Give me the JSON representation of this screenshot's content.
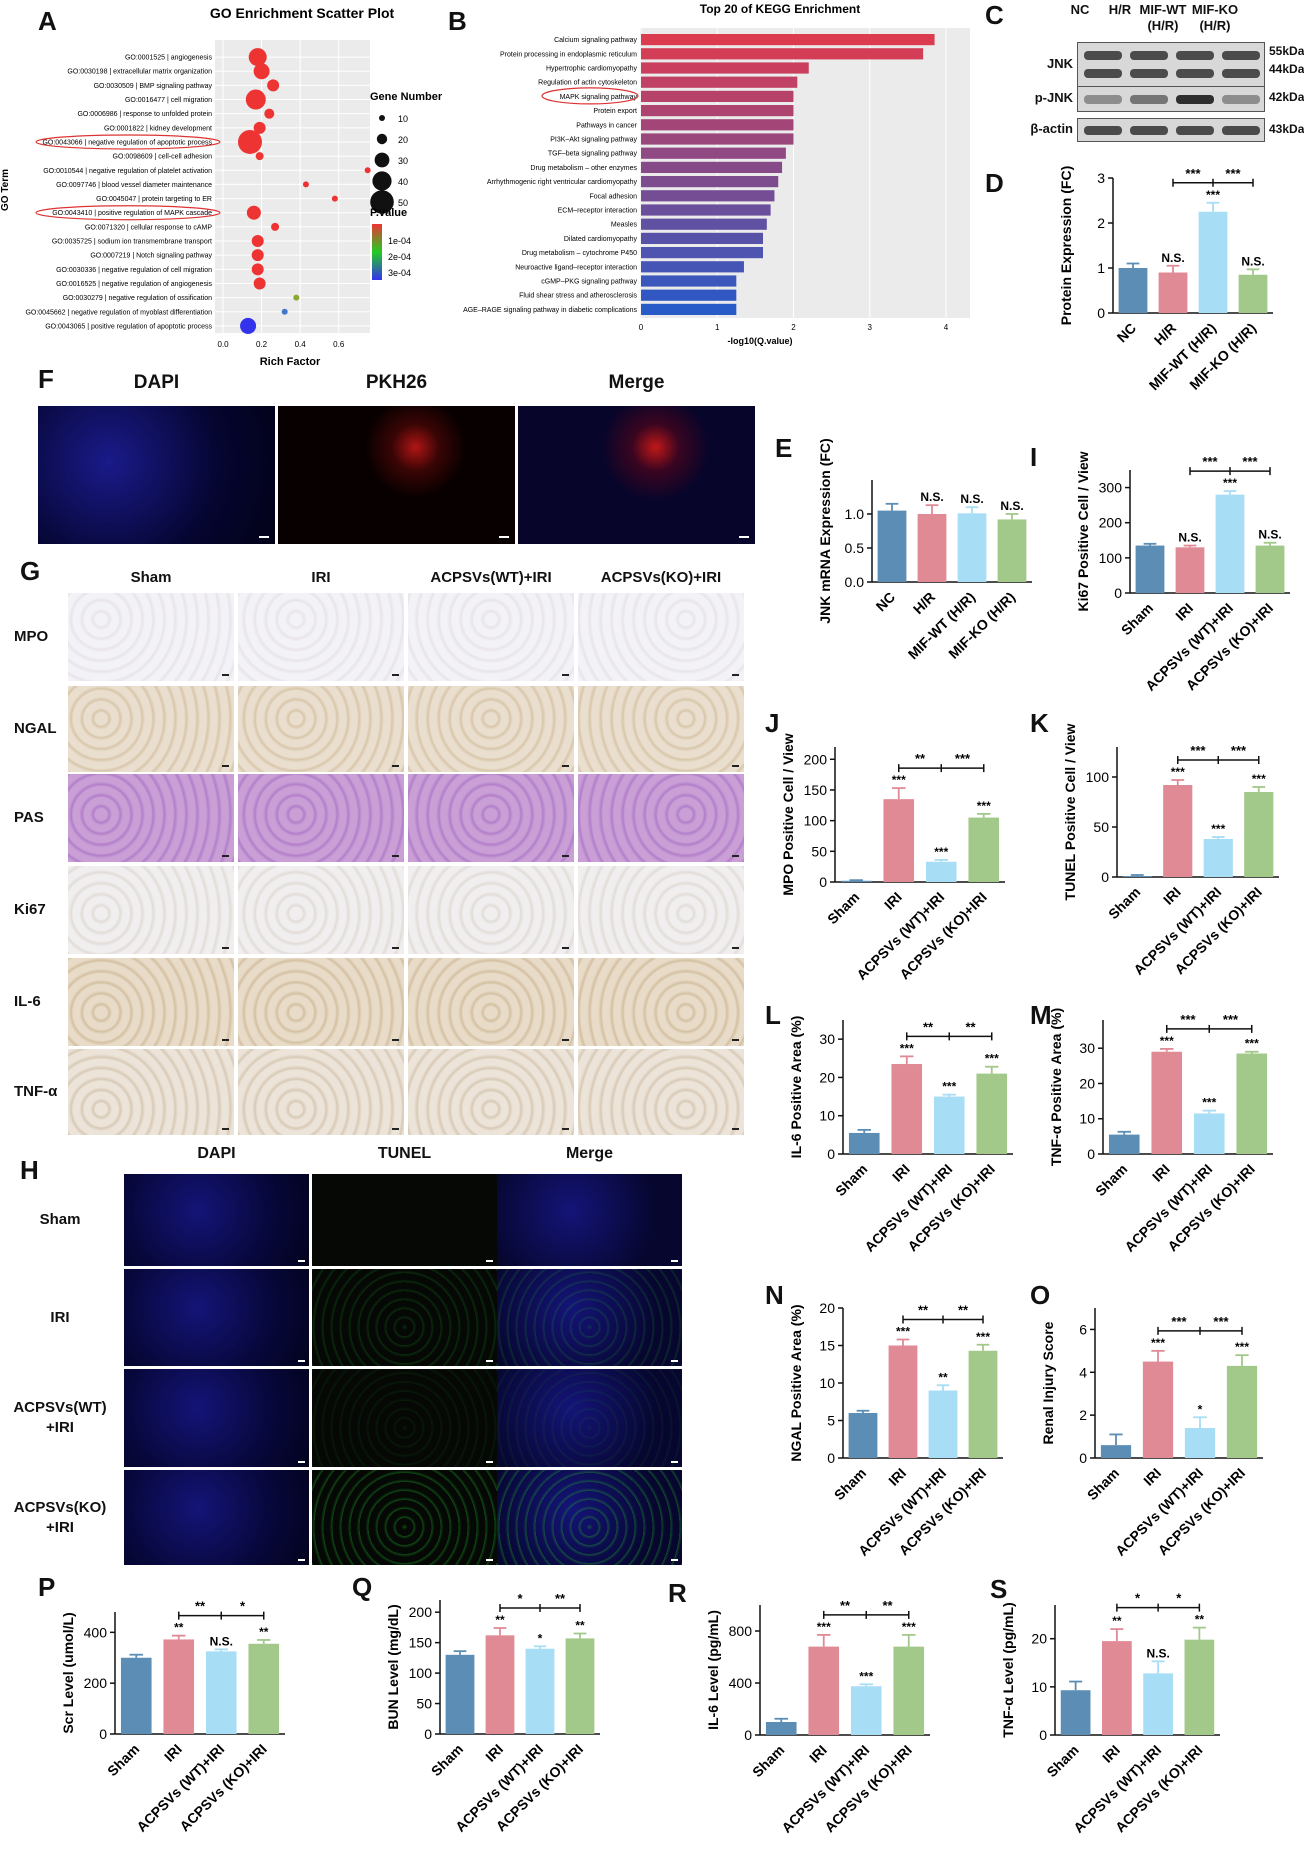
{
  "panels": {
    "A": {
      "letter": "A",
      "title": "GO Enrichment Scatter Plot",
      "ylabel": "GO Term",
      "xlabel": "Rich Factor",
      "xticks": [
        "0.0",
        "0.2",
        "0.4",
        "0.6"
      ],
      "terms": [
        "GO:0001525 | angiogenesis",
        "GO:0030198 | extracellular matrix organization",
        "GO:0030509 | BMP signaling pathway",
        "GO:0016477 | cell migration",
        "GO:0006986 | response to unfolded protein",
        "GO:0001822 | kidney development",
        "GO:0043066 | negative regulation of apoptotic process",
        "GO:0098609 | cell-cell adhesion",
        "GO:0010544 | negative regulation of platelet activation",
        "GO:0097746 | blood vessel diameter maintenance",
        "GO:0045047 | protein targeting to ER",
        "GO:0043410 | positive regulation of MAPK cascade",
        "GO:0071320 | cellular response to cAMP",
        "GO:0035725 | sodium ion transmembrane transport",
        "GO:0007219 | Notch signaling pathway",
        "GO:0030336 | negative regulation of cell migration",
        "GO:0016525 | negative regulation of angiogenesis",
        "GO:0030279 | negative regulation of ossification",
        "GO:0045662 | negative regulation of myoblast differentiation",
        "GO:0043065 | positive regulation of apoptotic process"
      ],
      "legend_size_title": "Gene Number",
      "legend_sizes": [
        "10",
        "20",
        "30",
        "40",
        "50"
      ],
      "legend_color_title": "P.value",
      "legend_colors": [
        "1e-04",
        "2e-04",
        "3e-04"
      ]
    },
    "B": {
      "letter": "B",
      "title": "Top 20 of KEGG Enrichment",
      "xlabel": "-log10(Q.value)",
      "xticks": [
        "0",
        "1",
        "2",
        "3",
        "4"
      ],
      "terms": [
        "Calcium signaling pathway",
        "Protein processing in endoplasmic reticulum",
        "Hypertrophic cardiomyopathy",
        "Regulation of actin cytoskeleton",
        "MAPK signaling pathway",
        "Protein export",
        "Pathways in cancer",
        "PI3K–Akt signaling pathway",
        "TGF–beta signaling pathway",
        "Drug metabolism – other enzymes",
        "Arrhythmogenic right ventricular cardiomyopathy",
        "Focal adhesion",
        "ECM–receptor interaction",
        "Measles",
        "Dilated cardiomyopathy",
        "Drug metabolism – cytochrome P450",
        "Neuroactive ligand–receptor interaction",
        "cGMP–PKG signaling pathway",
        "Fluid shear stress and atherosclerosis",
        "AGE–RAGE signaling pathway in diabetic complications"
      ]
    },
    "C": {
      "letter": "C",
      "headers": [
        "NC",
        "H/R",
        "MIF-WT (H/R)",
        "MIF-KO (H/R)"
      ],
      "rows": [
        "JNK",
        "p-JNK",
        "β-actin"
      ],
      "kda": [
        "55kDa",
        "44kDa",
        "42kDa",
        "43kDa"
      ]
    },
    "F": {
      "letter": "F",
      "headers": [
        "DAPI",
        "PKH26",
        "Merge"
      ]
    },
    "G": {
      "letter": "G",
      "headers": [
        "Sham",
        "IRI",
        "ACPSVs(WT)+IRI",
        "ACPSVs(KO)+IRI"
      ],
      "rows": [
        "MPO",
        "NGAL",
        "PAS",
        "Ki67",
        "IL-6",
        "TNF-α"
      ]
    },
    "H": {
      "letter": "H",
      "headers": [
        "DAPI",
        "TUNEL",
        "Merge"
      ],
      "rows": [
        "Sham",
        "IRI",
        "ACPSVs(WT)",
        "+IRI",
        "ACPSVs(KO)",
        "+IRI"
      ]
    }
  },
  "colors": {
    "blue": "#5b8db5",
    "pink": "#e08a96",
    "light": "#a7ddf5",
    "green": "#a3c98a"
  },
  "chart_data": [
    {
      "id": "D",
      "letter": "D",
      "type": "bar",
      "ylabel": "Protein Expression (FC)",
      "categories": [
        "NC",
        "H/R",
        "MIF-WT (H/R)",
        "MIF-KO (H/R)"
      ],
      "values": [
        1.0,
        0.9,
        2.25,
        0.85
      ],
      "errors": [
        0.1,
        0.15,
        0.2,
        0.12
      ],
      "ylim": [
        0,
        3
      ],
      "yticks": [
        "0",
        "1",
        "2",
        "3"
      ],
      "sig": [
        "",
        "N.S.",
        "***",
        "N.S."
      ],
      "brackets": [
        "***",
        "***"
      ]
    },
    {
      "id": "E",
      "letter": "E",
      "type": "bar",
      "ylabel": "JNK mRNA Expression (FC)",
      "categories": [
        "NC",
        "H/R",
        "MIF-WT (H/R)",
        "MIF-KO (H/R)"
      ],
      "values": [
        1.05,
        1.0,
        1.01,
        0.92
      ],
      "errors": [
        0.1,
        0.13,
        0.09,
        0.08
      ],
      "ylim": [
        0,
        1.5
      ],
      "yticks": [
        "0.0",
        "0.5",
        "1.0"
      ],
      "sig": [
        "",
        "N.S.",
        "N.S.",
        "N.S."
      ],
      "brackets": []
    },
    {
      "id": "I",
      "letter": "I",
      "type": "bar",
      "ylabel": "Ki67 Positive Cell / View",
      "categories": [
        "Sham",
        "IRI",
        "ACPSVs (WT)+IRI",
        "ACPSVs (KO)+IRI"
      ],
      "values": [
        135,
        130,
        280,
        135
      ],
      "errors": [
        5,
        5,
        10,
        8
      ],
      "ylim": [
        0,
        350
      ],
      "yticks": [
        "0",
        "100",
        "200",
        "300"
      ],
      "sig": [
        "",
        "N.S.",
        "***",
        "N.S."
      ],
      "brackets": [
        "***",
        "***"
      ]
    },
    {
      "id": "J",
      "letter": "J",
      "type": "bar",
      "ylabel": "MPO Positive Cell / View",
      "categories": [
        "Sham",
        "IRI",
        "ACPSVs (WT)+IRI",
        "ACPSVs (KO)+IRI"
      ],
      "values": [
        2,
        135,
        33,
        105
      ],
      "errors": [
        1,
        18,
        3,
        6
      ],
      "ylim": [
        0,
        220
      ],
      "yticks": [
        "0",
        "50",
        "100",
        "150",
        "200"
      ],
      "sig": [
        "",
        "***",
        "***",
        "***"
      ],
      "brackets": [
        "**",
        "***"
      ]
    },
    {
      "id": "K",
      "letter": "K",
      "type": "bar",
      "ylabel": "TUNEL Positive Cell / View",
      "categories": [
        "Sham",
        "IRI",
        "ACPSVs (WT)+IRI",
        "ACPSVs (KO)+IRI"
      ],
      "values": [
        1,
        92,
        38,
        85
      ],
      "errors": [
        1,
        5,
        2,
        5
      ],
      "ylim": [
        0,
        130
      ],
      "yticks": [
        "0",
        "50",
        "100"
      ],
      "sig": [
        "",
        "***",
        "***",
        "***"
      ],
      "brackets": [
        "***",
        "***"
      ]
    },
    {
      "id": "L",
      "letter": "L",
      "type": "bar",
      "ylabel": "IL-6 Positive Area (%)",
      "categories": [
        "Sham",
        "IRI",
        "ACPSVs (WT)+IRI",
        "ACPSVs (KO)+IRI"
      ],
      "values": [
        5.5,
        23.5,
        15,
        21
      ],
      "errors": [
        0.8,
        2,
        0.5,
        1.8
      ],
      "ylim": [
        0,
        35
      ],
      "yticks": [
        "0",
        "10",
        "20",
        "30"
      ],
      "sig": [
        "",
        "***",
        "***",
        "***"
      ],
      "brackets": [
        "**",
        "**"
      ]
    },
    {
      "id": "M",
      "letter": "M",
      "type": "bar",
      "ylabel": "TNF-α Positive Area (%)",
      "categories": [
        "Sham",
        "IRI",
        "ACPSVs (WT)+IRI",
        "ACPSVs (KO)+IRI"
      ],
      "values": [
        5.5,
        29,
        11.5,
        28.5
      ],
      "errors": [
        0.8,
        0.8,
        0.8,
        0.5
      ],
      "ylim": [
        0,
        38
      ],
      "yticks": [
        "0",
        "10",
        "20",
        "30"
      ],
      "sig": [
        "",
        "***",
        "***",
        "***"
      ],
      "brackets": [
        "***",
        "***"
      ]
    },
    {
      "id": "N",
      "letter": "N",
      "type": "bar",
      "ylabel": "NGAL Positive Area (%)",
      "categories": [
        "Sham",
        "IRI",
        "ACPSVs (WT)+IRI",
        "ACPSVs (KO)+IRI"
      ],
      "values": [
        6,
        15,
        9,
        14.3
      ],
      "errors": [
        0.3,
        0.8,
        0.7,
        0.8
      ],
      "ylim": [
        0,
        20
      ],
      "yticks": [
        "0",
        "5",
        "10",
        "15",
        "20"
      ],
      "sig": [
        "",
        "***",
        "**",
        "***"
      ],
      "brackets": [
        "**",
        "**"
      ]
    },
    {
      "id": "O",
      "letter": "O",
      "type": "bar",
      "ylabel": "Renal Injury Score",
      "categories": [
        "Sham",
        "IRI",
        "ACPSVs (WT)+IRI",
        "ACPSVs (KO)+IRI"
      ],
      "values": [
        0.6,
        4.5,
        1.4,
        4.3
      ],
      "errors": [
        0.5,
        0.5,
        0.5,
        0.5
      ],
      "ylim": [
        0,
        7
      ],
      "yticks": [
        "0",
        "2",
        "4",
        "6"
      ],
      "sig": [
        "",
        "***",
        "*",
        "***"
      ],
      "brackets": [
        "***",
        "***"
      ]
    },
    {
      "id": "P",
      "letter": "P",
      "type": "bar",
      "ylabel": "Scr Level (umol/L)",
      "categories": [
        "Sham",
        "IRI",
        "ACPSVs (WT)+IRI",
        "ACPSVs (KO)+IRI"
      ],
      "values": [
        300,
        372,
        325,
        355
      ],
      "errors": [
        12,
        15,
        8,
        15
      ],
      "ylim": [
        0,
        480
      ],
      "yticks": [
        "0",
        "200",
        "400"
      ],
      "sig": [
        "",
        "**",
        "N.S.",
        "**"
      ],
      "brackets": [
        "**",
        "*"
      ]
    },
    {
      "id": "Q",
      "letter": "Q",
      "type": "bar",
      "ylabel": "BUN Level (mg/dL)",
      "categories": [
        "Sham",
        "IRI",
        "ACPSVs (WT)+IRI",
        "ACPSVs (KO)+IRI"
      ],
      "values": [
        130,
        162,
        140,
        157
      ],
      "errors": [
        6,
        12,
        4,
        8
      ],
      "ylim": [
        0,
        220
      ],
      "yticks": [
        "0",
        "50",
        "100",
        "150",
        "200"
      ],
      "sig": [
        "",
        "**",
        "*",
        "**"
      ],
      "brackets": [
        "*",
        "**"
      ]
    },
    {
      "id": "R",
      "letter": "R",
      "type": "bar",
      "ylabel": "IL-6 Level (pg/mL)",
      "categories": [
        "Sham",
        "IRI",
        "ACPSVs (WT)+IRI",
        "ACPSVs (KO)+IRI"
      ],
      "values": [
        100,
        680,
        375,
        680
      ],
      "errors": [
        25,
        90,
        15,
        90
      ],
      "ylim": [
        0,
        1000
      ],
      "yticks": [
        "0",
        "400",
        "800"
      ],
      "sig": [
        "",
        "***",
        "***",
        "***"
      ],
      "brackets": [
        "**",
        "**"
      ]
    },
    {
      "id": "S",
      "letter": "S",
      "type": "bar",
      "ylabel": "TNF-α Level (pg/mL)",
      "categories": [
        "Sham",
        "IRI",
        "ACPSVs (WT)+IRI",
        "ACPSVs (KO)+IRI"
      ],
      "values": [
        9.3,
        19.5,
        12.8,
        19.8
      ],
      "errors": [
        1.8,
        2.5,
        2.5,
        2.5
      ],
      "ylim": [
        0,
        27
      ],
      "yticks": [
        "0",
        "10",
        "20"
      ],
      "sig": [
        "",
        "**",
        "N.S.",
        "**"
      ],
      "brackets": [
        "*",
        "*"
      ]
    }
  ]
}
